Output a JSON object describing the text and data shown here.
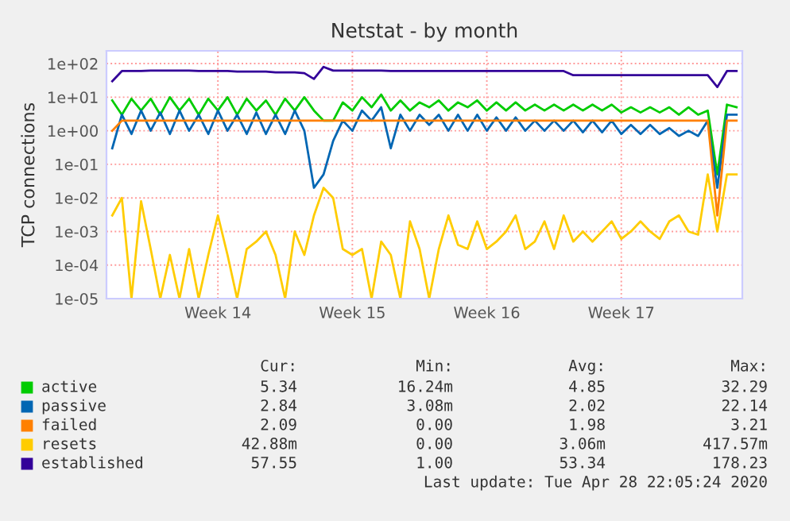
{
  "chart_data": {
    "type": "line",
    "title": "Netstat - by month",
    "ylabel": "TCP connections",
    "categories": [
      null,
      null,
      null,
      null,
      null,
      null,
      null,
      null,
      null,
      null,
      null,
      "Week 14",
      null,
      null,
      null,
      null,
      null,
      null,
      null,
      null,
      null,
      null,
      null,
      null,
      null,
      "Week 15",
      null,
      null,
      null,
      null,
      null,
      null,
      null,
      null,
      null,
      null,
      null,
      null,
      null,
      "Week 16",
      null,
      null,
      null,
      null,
      null,
      null,
      null,
      null,
      null,
      null,
      null,
      null,
      null,
      "Week 17",
      null,
      null,
      null,
      null,
      null,
      null,
      null,
      null,
      null,
      null,
      null,
      null
    ],
    "series": [
      {
        "name": "active",
        "color": "#00cc00",
        "values": [
          8,
          3,
          9,
          4,
          9,
          3,
          10,
          4,
          9,
          3,
          9,
          4,
          10,
          3,
          9,
          4,
          8,
          3,
          9,
          4,
          10,
          4,
          2,
          2,
          7,
          4,
          10,
          5,
          12,
          4,
          8,
          4,
          7,
          5,
          8,
          4,
          7,
          5,
          8,
          4,
          7,
          4,
          7,
          4,
          6,
          4,
          6,
          4,
          6,
          4,
          6,
          4,
          6,
          3.5,
          5,
          3.5,
          5,
          3.5,
          5,
          3,
          5,
          3,
          4,
          0.05,
          6,
          5
        ]
      },
      {
        "name": "passive",
        "color": "#0066b3",
        "values": [
          0.3,
          3,
          0.8,
          4,
          1,
          3.5,
          0.8,
          4,
          1,
          3,
          0.8,
          4,
          1,
          3,
          0.8,
          3.5,
          0.8,
          3,
          0.8,
          4,
          1,
          0.02,
          0.05,
          0.5,
          2,
          1,
          4,
          2,
          5,
          0.3,
          3,
          1,
          3,
          1.5,
          3,
          1,
          3,
          1,
          3,
          1,
          2.5,
          1,
          2.5,
          1,
          2,
          1,
          2,
          1,
          2,
          0.9,
          2,
          0.9,
          2,
          0.8,
          1.5,
          0.8,
          1.5,
          0.8,
          1.2,
          0.7,
          1,
          0.7,
          2,
          0.02,
          3,
          3
        ]
      },
      {
        "name": "failed",
        "color": "#ff8000",
        "values": [
          1,
          2,
          2,
          2,
          2,
          2,
          2,
          2,
          2,
          2,
          2,
          2,
          2,
          2,
          2,
          2,
          2,
          2,
          2,
          2,
          2,
          2,
          2,
          2,
          2,
          2,
          2,
          2,
          2,
          2,
          2,
          2,
          2,
          2,
          2,
          2,
          2,
          2,
          2,
          2,
          2,
          2,
          2,
          2,
          2,
          2,
          2,
          2,
          2,
          2,
          2,
          2,
          2,
          2,
          2,
          2,
          2,
          2,
          2,
          2,
          2,
          2,
          2,
          0.003,
          2,
          2
        ]
      },
      {
        "name": "resets",
        "color": "#ffcc00",
        "values": [
          0.003,
          0.01,
          1e-05,
          0.008,
          0.0003,
          1e-05,
          0.0002,
          1e-05,
          0.0003,
          1e-05,
          0.0002,
          0.003,
          0.0002,
          1e-05,
          0.0003,
          0.0005,
          0.001,
          0.0002,
          1e-05,
          0.001,
          0.0002,
          0.003,
          0.02,
          0.01,
          0.0003,
          0.0002,
          0.0003,
          1e-05,
          0.0005,
          0.0002,
          1e-05,
          0.002,
          0.0003,
          1e-05,
          0.0003,
          0.003,
          0.0004,
          0.0003,
          0.002,
          0.0003,
          0.0005,
          0.001,
          0.003,
          0.0003,
          0.0005,
          0.002,
          0.0003,
          0.003,
          0.0005,
          0.001,
          0.0005,
          0.001,
          0.002,
          0.0006,
          0.001,
          0.002,
          0.001,
          0.0006,
          0.002,
          0.003,
          0.001,
          0.0008,
          0.05,
          0.001,
          0.05,
          0.05
        ]
      },
      {
        "name": "established",
        "color": "#330099",
        "values": [
          30,
          60,
          60,
          60,
          62,
          62,
          62,
          62,
          62,
          60,
          60,
          60,
          60,
          58,
          58,
          58,
          58,
          55,
          55,
          55,
          52,
          35,
          80,
          62,
          62,
          62,
          62,
          62,
          62,
          60,
          60,
          60,
          60,
          60,
          60,
          60,
          60,
          60,
          60,
          60,
          60,
          60,
          60,
          60,
          60,
          60,
          60,
          60,
          45,
          45,
          45,
          45,
          45,
          45,
          45,
          45,
          45,
          45,
          45,
          45,
          45,
          45,
          45,
          20,
          60,
          60
        ]
      }
    ],
    "log": "y",
    "ylim": [
      1e-05,
      240
    ],
    "yticks": [
      {
        "value": 1e-05,
        "label": "1e-05"
      },
      {
        "value": 0.0001,
        "label": "1e-04"
      },
      {
        "value": 0.001,
        "label": "1e-03"
      },
      {
        "value": 0.01,
        "label": "1e-02"
      },
      {
        "value": 0.1,
        "label": "1e-01"
      },
      {
        "value": 1,
        "label": "1e+00"
      },
      {
        "value": 10,
        "label": "1e+01"
      },
      {
        "value": 100,
        "label": "1e+02"
      }
    ],
    "grid": true,
    "legend": "bottom",
    "line_style": "solid",
    "marker": "none",
    "annotations": [
      "Cur:",
      "Min:",
      "Avg:",
      "Max:",
      "5.34",
      "16.24m",
      "4.85",
      "32.29",
      "2.84",
      "3.08m",
      "2.02",
      "22.14",
      "2.09",
      "0.00",
      "1.98",
      "3.21",
      "42.88m",
      "0.00",
      "3.06m",
      "417.57m",
      "57.55",
      "1.00",
      "53.34",
      "178.23",
      "Last update: Tue Apr 28 22:05:24 2020"
    ]
  }
}
